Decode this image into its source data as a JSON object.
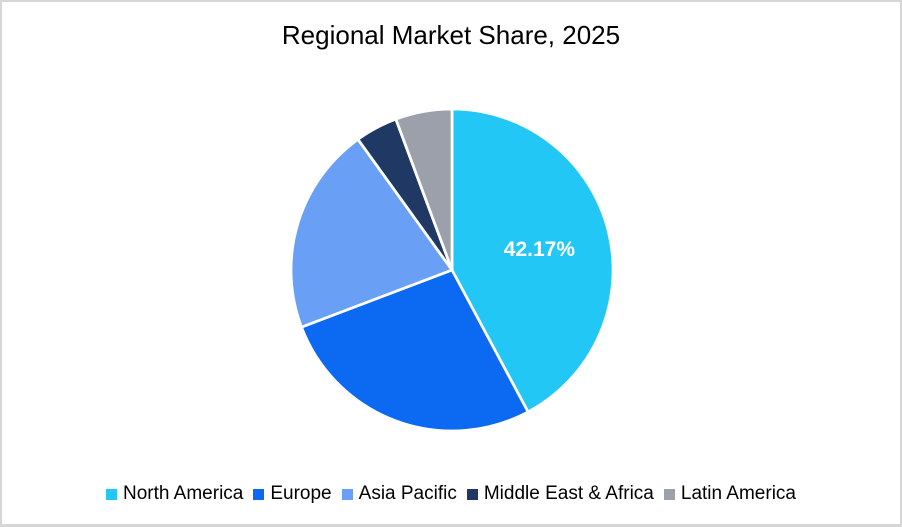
{
  "frame": {
    "background": "#ffffff",
    "border_color": "#d6d6d6"
  },
  "chart_data": {
    "type": "pie",
    "title": "Regional Market Share, 2025",
    "start_angle_deg": 0,
    "direction": "clockwise",
    "legend_position": "bottom",
    "slice_separator_color": "#ffffff",
    "data_label_color": "#ffffff",
    "slices": [
      {
        "label": "North America",
        "value": 42.17,
        "color": "#22C7F5",
        "data_label": "42.17%"
      },
      {
        "label": "Europe",
        "value": 27.06,
        "color": "#0B69F2"
      },
      {
        "label": "Asia Pacific",
        "value": 20.84,
        "color": "#699FF4"
      },
      {
        "label": "Middle East & Africa",
        "value": 4.26,
        "color": "#1F3864"
      },
      {
        "label": "Latin America",
        "value": 5.67,
        "color": "#9BA0AA"
      }
    ]
  }
}
